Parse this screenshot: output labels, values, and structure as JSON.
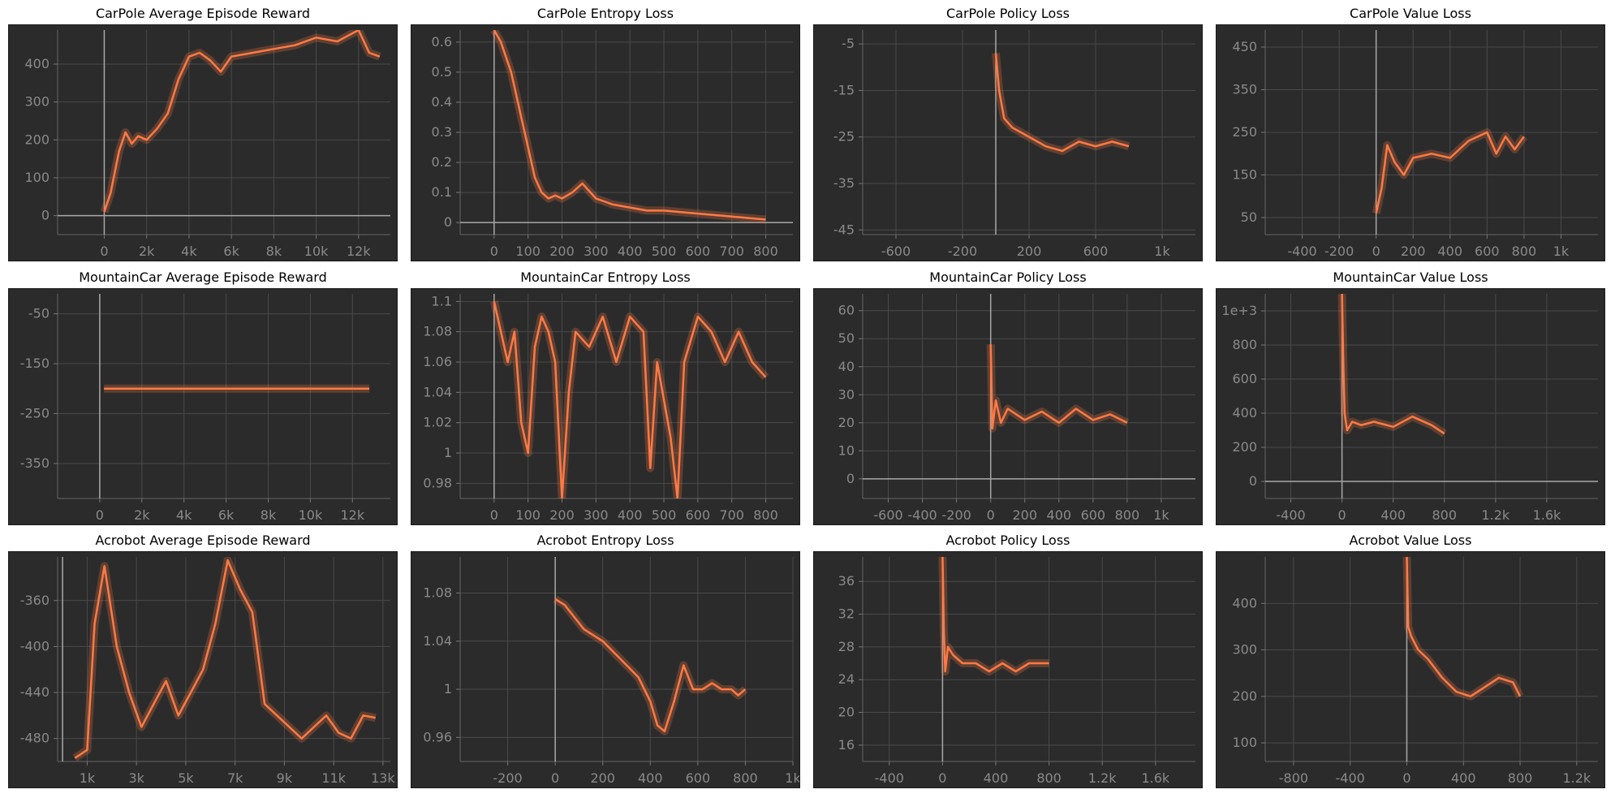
{
  "accent": "#ff7a45",
  "chart_data": [
    {
      "title": "CarPole Average Episode Reward",
      "type": "line",
      "xlim": [
        -2200,
        13500
      ],
      "ylim": [
        -50,
        490
      ],
      "xticks": [
        0,
        2000,
        4000,
        6000,
        8000,
        10000,
        12000
      ],
      "xlabels": [
        "0",
        "2k",
        "4k",
        "6k",
        "8k",
        "10k",
        "12k"
      ],
      "yticks": [
        0,
        100,
        200,
        300,
        400
      ],
      "ylabels": [
        "0",
        "100",
        "200",
        "300",
        "400"
      ],
      "series": [
        {
          "x": [
            0,
            300,
            700,
            1000,
            1300,
            1600,
            2000,
            2500,
            3000,
            3500,
            4000,
            4500,
            5000,
            5500,
            6000,
            7000,
            8000,
            9000,
            10000,
            11000,
            12000,
            12500,
            13000
          ],
          "y": [
            10,
            60,
            170,
            220,
            190,
            210,
            200,
            230,
            270,
            360,
            420,
            430,
            410,
            380,
            420,
            430,
            440,
            450,
            470,
            460,
            490,
            430,
            420
          ]
        }
      ]
    },
    {
      "title": "CarPole Entropy Loss",
      "type": "line",
      "xlim": [
        -100,
        880
      ],
      "ylim": [
        -0.04,
        0.64
      ],
      "xticks": [
        0,
        100,
        200,
        300,
        400,
        500,
        600,
        700,
        800
      ],
      "xlabels": [
        "0",
        "100",
        "200",
        "300",
        "400",
        "500",
        "600",
        "700",
        "800"
      ],
      "yticks": [
        0,
        0.1,
        0.2,
        0.3,
        0.4,
        0.5,
        0.6
      ],
      "ylabels": [
        "0",
        "0.1",
        "0.2",
        "0.3",
        "0.4",
        "0.5",
        "0.6"
      ],
      "series": [
        {
          "x": [
            0,
            20,
            50,
            80,
            100,
            120,
            140,
            160,
            180,
            200,
            230,
            260,
            300,
            350,
            400,
            450,
            500,
            600,
            700,
            800
          ],
          "y": [
            0.64,
            0.6,
            0.5,
            0.35,
            0.25,
            0.15,
            0.1,
            0.08,
            0.09,
            0.08,
            0.1,
            0.13,
            0.08,
            0.06,
            0.05,
            0.04,
            0.04,
            0.03,
            0.02,
            0.01
          ]
        }
      ]
    },
    {
      "title": "CarPole Policy Loss",
      "type": "line",
      "xlim": [
        -800,
        1200
      ],
      "ylim": [
        -46,
        -2
      ],
      "xticks": [
        -600,
        -200,
        200,
        600,
        1000
      ],
      "xlabels": [
        "-600",
        "-200",
        "200",
        "600",
        "1k"
      ],
      "yticks": [
        -45,
        -35,
        -25,
        -15,
        -5
      ],
      "ylabels": [
        "-45",
        "-35",
        "-25",
        "-15",
        "-5"
      ],
      "series": [
        {
          "x": [
            0,
            20,
            50,
            100,
            150,
            200,
            300,
            400,
            500,
            600,
            700,
            800
          ],
          "y": [
            -7,
            -15,
            -21,
            -23,
            -24,
            -25,
            -27,
            -28,
            -26,
            -27,
            -26,
            -27
          ]
        }
      ]
    },
    {
      "title": "CarPole Value Loss",
      "type": "line",
      "xlim": [
        -600,
        1200
      ],
      "ylim": [
        10,
        490
      ],
      "xticks": [
        -400,
        -200,
        0,
        200,
        400,
        600,
        800,
        1000
      ],
      "xlabels": [
        "-400",
        "-200",
        "0",
        "200",
        "400",
        "600",
        "800",
        "1k"
      ],
      "yticks": [
        50,
        150,
        250,
        350,
        450
      ],
      "ylabels": [
        "50",
        "150",
        "250",
        "350",
        "450"
      ],
      "series": [
        {
          "x": [
            0,
            30,
            60,
            100,
            150,
            200,
            300,
            400,
            500,
            600,
            650,
            700,
            750,
            800
          ],
          "y": [
            60,
            120,
            220,
            180,
            150,
            190,
            200,
            190,
            230,
            250,
            200,
            240,
            210,
            240
          ]
        }
      ]
    },
    {
      "title": "MountainCar Average Episode Reward",
      "type": "line",
      "xlim": [
        -2000,
        13800
      ],
      "ylim": [
        -420,
        -10
      ],
      "xticks": [
        0,
        2000,
        4000,
        6000,
        8000,
        10000,
        12000
      ],
      "xlabels": [
        "0",
        "2k",
        "4k",
        "6k",
        "8k",
        "10k",
        "12k"
      ],
      "yticks": [
        -350,
        -250,
        -150,
        -50
      ],
      "ylabels": [
        "-350",
        "-250",
        "-150",
        "-50"
      ],
      "series": [
        {
          "x": [
            200,
            12800
          ],
          "y": [
            -200,
            -200
          ]
        }
      ]
    },
    {
      "title": "MountainCar Entropy Loss",
      "type": "line",
      "xlim": [
        -100,
        880
      ],
      "ylim": [
        0.97,
        1.105
      ],
      "xticks": [
        0,
        100,
        200,
        300,
        400,
        500,
        600,
        700,
        800
      ],
      "xlabels": [
        "0",
        "100",
        "200",
        "300",
        "400",
        "500",
        "600",
        "700",
        "800"
      ],
      "yticks": [
        0.98,
        1,
        1.02,
        1.04,
        1.06,
        1.08,
        1.1
      ],
      "ylabels": [
        "0.98",
        "1",
        "1.02",
        "1.04",
        "1.06",
        "1.08",
        "1.1"
      ],
      "series": [
        {
          "x": [
            0,
            20,
            40,
            60,
            80,
            100,
            120,
            140,
            160,
            180,
            200,
            220,
            240,
            280,
            320,
            360,
            400,
            440,
            460,
            480,
            520,
            540,
            560,
            600,
            640,
            680,
            720,
            760,
            800
          ],
          "y": [
            1.1,
            1.08,
            1.06,
            1.08,
            1.02,
            1.0,
            1.07,
            1.09,
            1.08,
            1.06,
            0.97,
            1.04,
            1.08,
            1.07,
            1.09,
            1.06,
            1.09,
            1.08,
            0.99,
            1.06,
            1.01,
            0.97,
            1.06,
            1.09,
            1.08,
            1.06,
            1.08,
            1.06,
            1.05
          ]
        }
      ]
    },
    {
      "title": "MountainCar Policy Loss",
      "type": "line",
      "xlim": [
        -750,
        1200
      ],
      "ylim": [
        -7,
        66
      ],
      "xticks": [
        -600,
        -400,
        -200,
        0,
        200,
        400,
        600,
        800,
        1000
      ],
      "xlabels": [
        "-600",
        "-400",
        "-200",
        "0",
        "200",
        "400",
        "600",
        "800",
        "1k"
      ],
      "yticks": [
        0,
        10,
        20,
        30,
        40,
        50,
        60
      ],
      "ylabels": [
        "0",
        "10",
        "20",
        "30",
        "40",
        "50",
        "60"
      ],
      "series": [
        {
          "x": [
            0,
            10,
            30,
            60,
            100,
            200,
            300,
            400,
            500,
            600,
            700,
            800
          ],
          "y": [
            48,
            18,
            28,
            20,
            25,
            21,
            24,
            20,
            25,
            21,
            23,
            20
          ]
        }
      ]
    },
    {
      "title": "MountainCar Value Loss",
      "type": "line",
      "xlim": [
        -600,
        2000
      ],
      "ylim": [
        -100,
        1100
      ],
      "xticks": [
        -400,
        0,
        400,
        800,
        1200,
        1600
      ],
      "xlabels": [
        "-400",
        "0",
        "400",
        "800",
        "1.2k",
        "1.6k"
      ],
      "yticks": [
        0,
        200,
        400,
        600,
        800,
        1000
      ],
      "ylabels": [
        "0",
        "200",
        "400",
        "600",
        "800",
        "1e+3"
      ],
      "series": [
        {
          "x": [
            0,
            10,
            20,
            40,
            80,
            150,
            250,
            400,
            550,
            700,
            800
          ],
          "y": [
            1100,
            700,
            400,
            300,
            350,
            330,
            350,
            320,
            380,
            330,
            280
          ]
        }
      ]
    },
    {
      "title": "Acrobot Average Episode Reward",
      "type": "line",
      "xlim": [
        -200,
        13300
      ],
      "ylim": [
        -500,
        -322
      ],
      "xticks": [
        1000,
        3000,
        5000,
        7000,
        9000,
        11000,
        13000
      ],
      "xlabels": [
        "1k",
        "3k",
        "5k",
        "7k",
        "9k",
        "11k",
        "13k"
      ],
      "yticks": [
        -480,
        -440,
        -400,
        -360
      ],
      "ylabels": [
        "-480",
        "-440",
        "-400",
        "-360"
      ],
      "series": [
        {
          "x": [
            500,
            1000,
            1300,
            1700,
            2200,
            2700,
            3200,
            3700,
            4200,
            4700,
            5200,
            5700,
            6200,
            6700,
            7200,
            7700,
            8200,
            8700,
            9200,
            9700,
            10200,
            10700,
            11200,
            11700,
            12200,
            12700
          ],
          "y": [
            -497,
            -490,
            -380,
            -330,
            -400,
            -440,
            -470,
            -450,
            -430,
            -460,
            -440,
            -420,
            -380,
            -325,
            -350,
            -370,
            -450,
            -460,
            -470,
            -480,
            -470,
            -460,
            -475,
            -480,
            -460,
            -462
          ]
        }
      ]
    },
    {
      "title": "Acrobot Entropy Loss",
      "type": "line",
      "xlim": [
        -400,
        1000
      ],
      "ylim": [
        0.94,
        1.11
      ],
      "xticks": [
        -200,
        0,
        200,
        400,
        600,
        800,
        1000
      ],
      "xlabels": [
        "-200",
        "0",
        "200",
        "400",
        "600",
        "800",
        "1k"
      ],
      "yticks": [
        0.96,
        1,
        1.04,
        1.08
      ],
      "ylabels": [
        "0.96",
        "1",
        "1.04",
        "1.08"
      ],
      "series": [
        {
          "x": [
            0,
            40,
            80,
            120,
            160,
            200,
            250,
            300,
            350,
            400,
            430,
            460,
            500,
            540,
            580,
            620,
            660,
            700,
            740,
            770,
            800
          ],
          "y": [
            1.075,
            1.07,
            1.06,
            1.05,
            1.045,
            1.04,
            1.03,
            1.02,
            1.01,
            0.99,
            0.97,
            0.965,
            0.99,
            1.02,
            1.0,
            1.0,
            1.005,
            1.0,
            1.0,
            0.995,
            1.0
          ]
        }
      ]
    },
    {
      "title": "Acrobot Policy Loss",
      "type": "line",
      "xlim": [
        -600,
        1900
      ],
      "ylim": [
        14,
        39
      ],
      "xticks": [
        -400,
        0,
        400,
        800,
        1200,
        1600
      ],
      "xlabels": [
        "-400",
        "0",
        "400",
        "800",
        "1.2k",
        "1.6k"
      ],
      "yticks": [
        16,
        20,
        24,
        28,
        32,
        36
      ],
      "ylabels": [
        "16",
        "20",
        "24",
        "28",
        "32",
        "36"
      ],
      "series": [
        {
          "x": [
            0,
            10,
            20,
            40,
            80,
            150,
            250,
            350,
            450,
            550,
            650,
            750,
            800
          ],
          "y": [
            39,
            30,
            25,
            28,
            27,
            26,
            26,
            25,
            26,
            25,
            26,
            26,
            26
          ]
        }
      ]
    },
    {
      "title": "Acrobot Value Loss",
      "type": "line",
      "xlim": [
        -1000,
        1350
      ],
      "ylim": [
        60,
        500
      ],
      "xticks": [
        -800,
        -400,
        0,
        400,
        800,
        1200
      ],
      "xlabels": [
        "-800",
        "-400",
        "0",
        "400",
        "800",
        "1.2k"
      ],
      "yticks": [
        100,
        200,
        300,
        400
      ],
      "ylabels": [
        "100",
        "200",
        "300",
        "400"
      ],
      "series": [
        {
          "x": [
            0,
            10,
            30,
            80,
            150,
            250,
            350,
            450,
            550,
            650,
            750,
            800
          ],
          "y": [
            500,
            350,
            330,
            300,
            280,
            240,
            210,
            200,
            220,
            240,
            230,
            200
          ]
        }
      ]
    }
  ]
}
